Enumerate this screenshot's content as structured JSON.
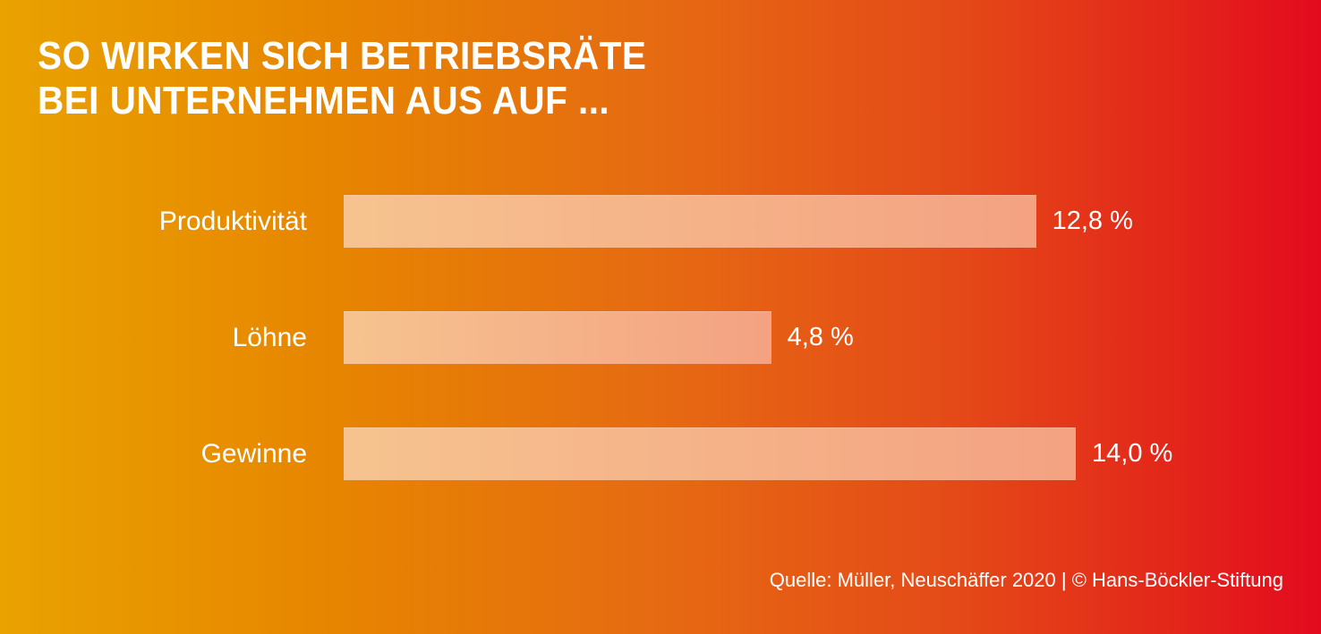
{
  "chart_data": {
    "type": "bar",
    "orientation": "horizontal",
    "title_lines": [
      "SO WIRKEN SICH BETRIEBSRÄTE",
      "BEI UNTERNEHMEN AUS AUF ..."
    ],
    "categories": [
      "Produktivität",
      "Löhne",
      "Gewinne"
    ],
    "values": [
      12.8,
      4.8,
      14.0
    ],
    "value_labels": [
      "12,8 %",
      "4,8 %",
      "14,0 %"
    ],
    "unit": "%",
    "grid": false,
    "legend": "none",
    "source": "Quelle: Müller, Neuschäffer 2020 | © Hans-Böckler-Stiftung"
  },
  "colors": {
    "gradient_start": "#e9a200",
    "gradient_end": "#e30a1e",
    "bar_start": "#f6c38f",
    "bar_end": "#f4a282"
  }
}
